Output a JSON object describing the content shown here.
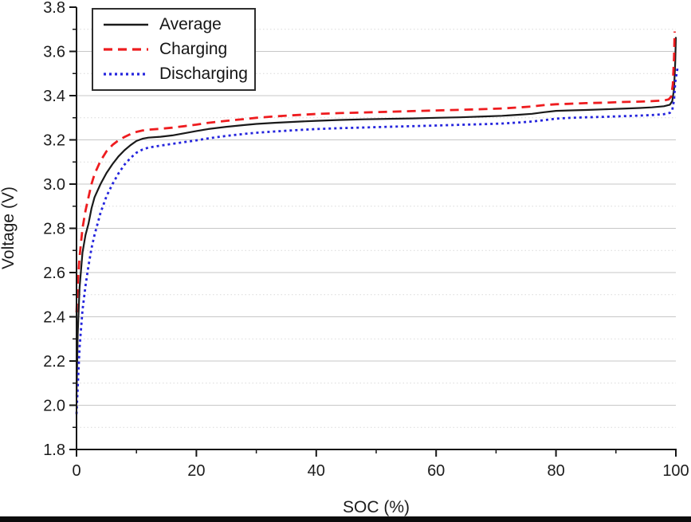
{
  "page": {
    "background": "#ffffff",
    "bottom_bar_color": "#0c0c0c"
  },
  "chart_data": {
    "type": "line",
    "title": "",
    "xlabel": "SOC (%)",
    "ylabel": "Voltage (V)",
    "xlim": [
      0,
      100
    ],
    "ylim": [
      1.8,
      3.8
    ],
    "x_ticks": [
      0,
      20,
      40,
      60,
      80,
      100
    ],
    "x_minor_ticks": [
      10,
      30,
      50,
      70,
      90
    ],
    "y_ticks": [
      1.8,
      2.0,
      2.2,
      2.4,
      2.6,
      2.8,
      3.0,
      3.2,
      3.4,
      3.6,
      3.8
    ],
    "y_minor_ticks": [
      1.9,
      2.1,
      2.3,
      2.5,
      2.7,
      2.9,
      3.1,
      3.3,
      3.5,
      3.7
    ],
    "grid": {
      "horizontal_major": "solid",
      "horizontal_minor": "dotted",
      "vertical": "none",
      "major_color": "#c7c7c7",
      "minor_color": "#d9d9d9"
    },
    "axis_color": "#161616",
    "text_color": "#1c1c1c",
    "legend": {
      "position": "top-left"
    },
    "series": [
      {
        "name": "Average",
        "color": "#1a1a1a",
        "line_style": "solid",
        "width": 2.2,
        "dash": "",
        "points": [
          [
            0,
            2.04
          ],
          [
            0.2,
            2.32
          ],
          [
            0.5,
            2.53
          ],
          [
            1,
            2.69
          ],
          [
            1.5,
            2.77
          ],
          [
            2,
            2.82
          ],
          [
            2.5,
            2.89
          ],
          [
            3,
            2.94
          ],
          [
            4,
            3.0
          ],
          [
            5,
            3.05
          ],
          [
            6,
            3.09
          ],
          [
            7,
            3.125
          ],
          [
            8,
            3.153
          ],
          [
            9,
            3.176
          ],
          [
            10,
            3.195
          ],
          [
            11,
            3.205
          ],
          [
            12,
            3.21
          ],
          [
            14,
            3.214
          ],
          [
            16,
            3.22
          ],
          [
            18,
            3.23
          ],
          [
            20,
            3.24
          ],
          [
            22,
            3.249
          ],
          [
            25,
            3.259
          ],
          [
            28,
            3.267
          ],
          [
            30,
            3.272
          ],
          [
            33,
            3.277
          ],
          [
            36,
            3.281
          ],
          [
            40,
            3.286
          ],
          [
            44,
            3.29
          ],
          [
            48,
            3.293
          ],
          [
            52,
            3.295
          ],
          [
            56,
            3.297
          ],
          [
            60,
            3.3
          ],
          [
            64,
            3.302
          ],
          [
            68,
            3.306
          ],
          [
            71,
            3.309
          ],
          [
            74,
            3.314
          ],
          [
            76,
            3.318
          ],
          [
            78,
            3.325
          ],
          [
            80,
            3.331
          ],
          [
            82,
            3.333
          ],
          [
            85,
            3.335
          ],
          [
            88,
            3.338
          ],
          [
            91,
            3.341
          ],
          [
            94,
            3.344
          ],
          [
            96,
            3.347
          ],
          [
            98,
            3.352
          ],
          [
            99,
            3.359
          ],
          [
            99.4,
            3.375
          ],
          [
            99.7,
            3.43
          ],
          [
            99.9,
            3.55
          ],
          [
            100,
            3.665
          ]
        ]
      },
      {
        "name": "Charging",
        "color": "#ee1c1f",
        "line_style": "dashed",
        "width": 2.8,
        "dash": "11 7",
        "points": [
          [
            0,
            2.42
          ],
          [
            0.2,
            2.55
          ],
          [
            0.5,
            2.67
          ],
          [
            1,
            2.8
          ],
          [
            1.5,
            2.88
          ],
          [
            2,
            2.94
          ],
          [
            2.5,
            3.0
          ],
          [
            3,
            3.045
          ],
          [
            4,
            3.105
          ],
          [
            5,
            3.148
          ],
          [
            6,
            3.177
          ],
          [
            7,
            3.198
          ],
          [
            8,
            3.213
          ],
          [
            9,
            3.226
          ],
          [
            10,
            3.236
          ],
          [
            11,
            3.242
          ],
          [
            12,
            3.246
          ],
          [
            14,
            3.25
          ],
          [
            16,
            3.255
          ],
          [
            18,
            3.262
          ],
          [
            20,
            3.269
          ],
          [
            22,
            3.277
          ],
          [
            25,
            3.286
          ],
          [
            28,
            3.294
          ],
          [
            30,
            3.3
          ],
          [
            33,
            3.306
          ],
          [
            36,
            3.311
          ],
          [
            40,
            3.317
          ],
          [
            44,
            3.321
          ],
          [
            48,
            3.324
          ],
          [
            52,
            3.327
          ],
          [
            56,
            3.33
          ],
          [
            60,
            3.333
          ],
          [
            64,
            3.336
          ],
          [
            68,
            3.339
          ],
          [
            71,
            3.342
          ],
          [
            74,
            3.347
          ],
          [
            76,
            3.351
          ],
          [
            78,
            3.357
          ],
          [
            80,
            3.361
          ],
          [
            82,
            3.363
          ],
          [
            85,
            3.366
          ],
          [
            88,
            3.368
          ],
          [
            91,
            3.371
          ],
          [
            94,
            3.373
          ],
          [
            96,
            3.375
          ],
          [
            98,
            3.378
          ],
          [
            98.8,
            3.383
          ],
          [
            99.2,
            3.395
          ],
          [
            99.5,
            3.45
          ],
          [
            99.7,
            3.57
          ],
          [
            99.8,
            3.69
          ]
        ]
      },
      {
        "name": "Discharging",
        "color": "#2424dd",
        "line_style": "dotted",
        "width": 2.8,
        "dash": "3 4",
        "points": [
          [
            0,
            1.96
          ],
          [
            0.2,
            2.08
          ],
          [
            0.5,
            2.26
          ],
          [
            1,
            2.43
          ],
          [
            1.5,
            2.54
          ],
          [
            2,
            2.63
          ],
          [
            2.5,
            2.71
          ],
          [
            3,
            2.77
          ],
          [
            4,
            2.87
          ],
          [
            5,
            2.945
          ],
          [
            6,
            3.0
          ],
          [
            7,
            3.048
          ],
          [
            8,
            3.088
          ],
          [
            9,
            3.118
          ],
          [
            10,
            3.142
          ],
          [
            11,
            3.156
          ],
          [
            12,
            3.165
          ],
          [
            14,
            3.174
          ],
          [
            16,
            3.182
          ],
          [
            18,
            3.19
          ],
          [
            20,
            3.198
          ],
          [
            22,
            3.207
          ],
          [
            25,
            3.218
          ],
          [
            28,
            3.227
          ],
          [
            30,
            3.232
          ],
          [
            33,
            3.238
          ],
          [
            36,
            3.243
          ],
          [
            40,
            3.249
          ],
          [
            44,
            3.253
          ],
          [
            48,
            3.256
          ],
          [
            52,
            3.259
          ],
          [
            56,
            3.262
          ],
          [
            60,
            3.265
          ],
          [
            64,
            3.268
          ],
          [
            68,
            3.271
          ],
          [
            71,
            3.274
          ],
          [
            74,
            3.279
          ],
          [
            76,
            3.283
          ],
          [
            78,
            3.289
          ],
          [
            80,
            3.296
          ],
          [
            82,
            3.299
          ],
          [
            85,
            3.302
          ],
          [
            88,
            3.304
          ],
          [
            91,
            3.307
          ],
          [
            94,
            3.31
          ],
          [
            96,
            3.312
          ],
          [
            98,
            3.316
          ],
          [
            99,
            3.322
          ],
          [
            99.4,
            3.335
          ],
          [
            99.7,
            3.38
          ],
          [
            99.9,
            3.46
          ],
          [
            100.3,
            3.53
          ]
        ]
      }
    ]
  }
}
